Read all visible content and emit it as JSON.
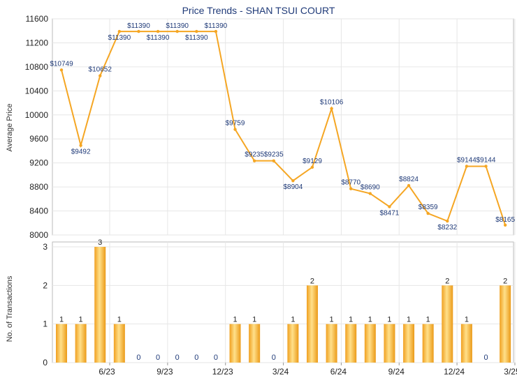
{
  "chart_data": [
    {
      "type": "line",
      "title": "Price Trends - SHAN TSUI COURT",
      "ylabel": "Average Price",
      "ylim": [
        8000,
        11600
      ],
      "yticks": [
        8000,
        8400,
        8800,
        9200,
        9600,
        10000,
        10400,
        10800,
        11200,
        11600
      ],
      "grid": true,
      "x": [
        "4/23",
        "5/23",
        "6/23",
        "7/23",
        "8/23",
        "9/23",
        "10/23",
        "11/23",
        "12/23",
        "1/24",
        "2/24",
        "3/24",
        "4/24",
        "5/24",
        "6/24",
        "7/24",
        "8/24",
        "9/24",
        "10/24",
        "11/24",
        "12/24",
        "1/25",
        "2/25",
        "3/25"
      ],
      "values": [
        10749,
        9492,
        10652,
        11390,
        11390,
        11390,
        11390,
        11390,
        11390,
        9759,
        9235,
        9235,
        8904,
        9129,
        10106,
        8770,
        8690,
        8471,
        8824,
        8359,
        8232,
        9144,
        9144,
        8165
      ],
      "labels": [
        "$10749",
        "$9492",
        "$10652",
        "$11390",
        "$11390",
        "$11390",
        "$11390",
        "$11390",
        "$11390",
        "$9759",
        "$9235",
        "$9235",
        "$8904",
        "$9129",
        "$10106",
        "$8770",
        "$8690",
        "$8471",
        "$8824",
        "$8359",
        "$8232",
        "$9144",
        "$9144",
        "$8165"
      ],
      "color": "#f5a623"
    },
    {
      "type": "bar",
      "ylabel": "No. of Transactions",
      "ylim": [
        0,
        3
      ],
      "yticks": [
        0,
        1,
        2,
        3
      ],
      "grid": true,
      "categories": [
        "4/23",
        "5/23",
        "6/23",
        "7/23",
        "8/23",
        "9/23",
        "10/23",
        "11/23",
        "12/23",
        "1/24",
        "2/24",
        "3/24",
        "4/24",
        "5/24",
        "6/24",
        "7/24",
        "8/24",
        "9/24",
        "10/24",
        "11/24",
        "12/24",
        "1/25",
        "2/25",
        "3/25"
      ],
      "values": [
        1,
        1,
        3,
        1,
        0,
        0,
        0,
        0,
        0,
        1,
        1,
        0,
        1,
        2,
        1,
        1,
        1,
        1,
        1,
        1,
        2,
        1,
        0,
        2
      ],
      "xtick_labels": [
        {
          "label": "6/23",
          "index": 2
        },
        {
          "label": "9/23",
          "index": 5
        },
        {
          "label": "12/23",
          "index": 8
        },
        {
          "label": "3/24",
          "index": 11
        },
        {
          "label": "6/24",
          "index": 14
        },
        {
          "label": "9/24",
          "index": 17
        },
        {
          "label": "12/24",
          "index": 20
        },
        {
          "label": "3/25",
          "index": 23
        }
      ],
      "color": "#f5a623"
    }
  ]
}
